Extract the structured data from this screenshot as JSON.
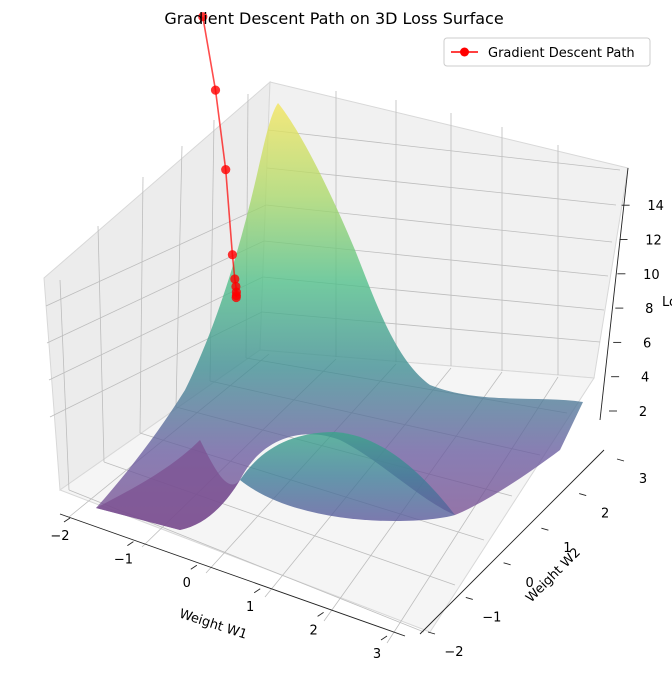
{
  "chart_data": {
    "type": "surface3d",
    "title": "Gradient Descent Path on 3D Loss Surface",
    "xlabel": "Weight W1",
    "ylabel": "Weight W2",
    "zlabel": "Loss",
    "xlim": [
      -2,
      3
    ],
    "ylim": [
      -2,
      3
    ],
    "zlim": [
      1,
      15
    ],
    "x_ticks": [
      "−2",
      "−1",
      "0",
      "1",
      "2",
      "3"
    ],
    "y_ticks": [
      "−2",
      "−1",
      "0",
      "1",
      "2",
      "3"
    ],
    "z_ticks": [
      "2",
      "4",
      "6",
      "8",
      "10",
      "12",
      "14"
    ],
    "grid": true,
    "colormap": "viridis",
    "legend": {
      "position": "top-right",
      "entries": [
        "Gradient Descent Path"
      ]
    },
    "series": [
      {
        "name": "Gradient Descent Path",
        "color": "#ff0000",
        "marker": "circle",
        "points": [
          {
            "w1": -1.8,
            "w2": 2.5,
            "loss": 13.2
          },
          {
            "w1": -1.34,
            "w2": 2.12,
            "loss": 10.5
          },
          {
            "w1": -0.96,
            "w2": 1.8,
            "loss": 7.2
          },
          {
            "w1": -0.62,
            "w2": 1.45,
            "loss": 3.6
          },
          {
            "w1": -0.45,
            "w2": 1.25,
            "loss": 2.9
          },
          {
            "w1": -0.38,
            "w2": 1.17,
            "loss": 2.75
          },
          {
            "w1": -0.34,
            "w2": 1.12,
            "loss": 2.6
          },
          {
            "w1": -0.32,
            "w2": 1.09,
            "loss": 2.5
          },
          {
            "w1": -0.31,
            "w2": 1.07,
            "loss": 2.45
          }
        ]
      }
    ]
  }
}
